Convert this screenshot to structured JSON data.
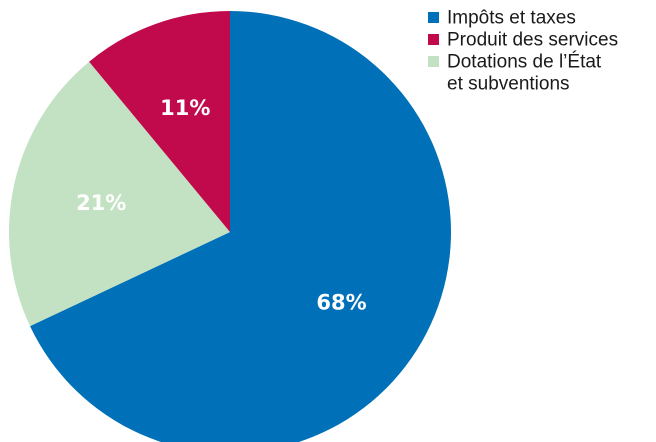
{
  "chart_data": {
    "type": "pie",
    "title": "",
    "slices": [
      {
        "label": "Impôts et taxes",
        "legend_lines": [
          "Impôts et taxes"
        ],
        "value": 68,
        "value_label": "68%",
        "color": "#0070b8",
        "label_color": "#ffffff"
      },
      {
        "label": "Dotations de l’État et subventions",
        "legend_lines": [
          "Dotations de l’État",
          "et subventions"
        ],
        "value": 21,
        "value_label": "21%",
        "color": "#c3e1c3",
        "label_color": "#ffffff"
      },
      {
        "label": "Produit des services",
        "legend_lines": [
          "Produit des services"
        ],
        "value": 11,
        "value_label": "11%",
        "color": "#c00a4c",
        "label_color": "#ffffff"
      }
    ],
    "legend_order": [
      0,
      2,
      1
    ],
    "legend_position": "top-right",
    "start": "12 o'clock",
    "direction": "clockwise"
  }
}
